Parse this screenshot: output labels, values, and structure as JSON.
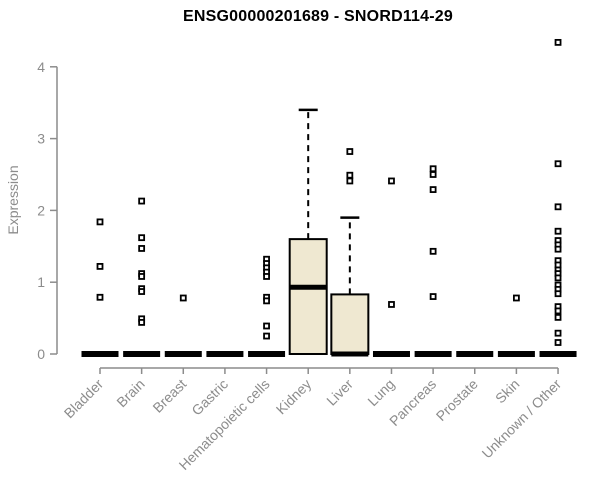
{
  "chart_data": {
    "type": "boxplot",
    "title": "ENSG00000201689 - SNORD114-29",
    "ylabel": "Expression",
    "xlabel": "",
    "ylim": [
      0,
      4.4
    ],
    "yticks": [
      0,
      1,
      2,
      3,
      4
    ],
    "grid": false,
    "legend": null,
    "categories": [
      "Bladder",
      "Brain",
      "Breast",
      "Gastric",
      "Hematopoietic cells",
      "Kidney",
      "Liver",
      "Lung",
      "Pancreas",
      "Prostate",
      "Skin",
      "Unknown / Other"
    ],
    "boxes": [
      {
        "category": "Bladder",
        "q1": 0,
        "median": 0,
        "q3": 0,
        "whisker_low": 0,
        "whisker_high": 0,
        "outliers": [
          1.84,
          1.22,
          0.79
        ]
      },
      {
        "category": "Brain",
        "q1": 0,
        "median": 0,
        "q3": 0,
        "whisker_low": 0,
        "whisker_high": 0,
        "outliers": [
          2.13,
          1.62,
          1.47,
          1.12,
          1.08,
          0.91,
          0.87,
          0.49,
          0.44
        ]
      },
      {
        "category": "Breast",
        "q1": 0,
        "median": 0,
        "q3": 0,
        "whisker_low": 0,
        "whisker_high": 0,
        "outliers": [
          0.78
        ]
      },
      {
        "category": "Gastric",
        "q1": 0,
        "median": 0,
        "q3": 0,
        "whisker_low": 0,
        "whisker_high": 0,
        "outliers": []
      },
      {
        "category": "Hematopoietic cells",
        "q1": 0,
        "median": 0,
        "q3": 0,
        "whisker_low": 0,
        "whisker_high": 0,
        "outliers": [
          1.32,
          1.26,
          1.2,
          1.14,
          1.08,
          0.79,
          0.74,
          0.39,
          0.25
        ]
      },
      {
        "category": "Kidney",
        "q1": 0,
        "median": 0.93,
        "q3": 1.6,
        "whisker_low": 0,
        "whisker_high": 3.4,
        "outliers": []
      },
      {
        "category": "Liver",
        "q1": 0,
        "median": 0,
        "q3": 0.83,
        "whisker_low": 0,
        "whisker_high": 1.9,
        "outliers": [
          2.82,
          2.49,
          2.41
        ]
      },
      {
        "category": "Lung",
        "q1": 0,
        "median": 0,
        "q3": 0,
        "whisker_low": 0,
        "whisker_high": 0,
        "outliers": [
          2.41,
          0.69
        ]
      },
      {
        "category": "Pancreas",
        "q1": 0,
        "median": 0,
        "q3": 0,
        "whisker_low": 0,
        "whisker_high": 0,
        "outliers": [
          2.58,
          2.5,
          2.29,
          1.43,
          0.8
        ]
      },
      {
        "category": "Prostate",
        "q1": 0,
        "median": 0,
        "q3": 0,
        "whisker_low": 0,
        "whisker_high": 0,
        "outliers": []
      },
      {
        "category": "Skin",
        "q1": 0,
        "median": 0,
        "q3": 0,
        "whisker_low": 0,
        "whisker_high": 0,
        "outliers": [
          0.78
        ]
      },
      {
        "category": "Unknown / Other",
        "q1": 0,
        "median": 0,
        "q3": 0,
        "whisker_low": 0,
        "whisker_high": 0,
        "outliers": [
          4.34,
          2.65,
          2.05,
          1.71,
          1.58,
          1.52,
          1.46,
          1.3,
          1.24,
          1.17,
          1.12,
          1.06,
          0.96,
          0.9,
          0.84,
          0.66,
          0.6,
          0.51,
          0.29,
          0.16
        ]
      }
    ],
    "colors": {
      "box_fill": "#EFE8D1",
      "box_stroke": "#000000",
      "median": "#000000",
      "outlier_stroke": "#000000",
      "outlier_fill": "#ffffff",
      "axis": "#8c8c8c",
      "title": "#000000",
      "background": "#ffffff"
    }
  }
}
